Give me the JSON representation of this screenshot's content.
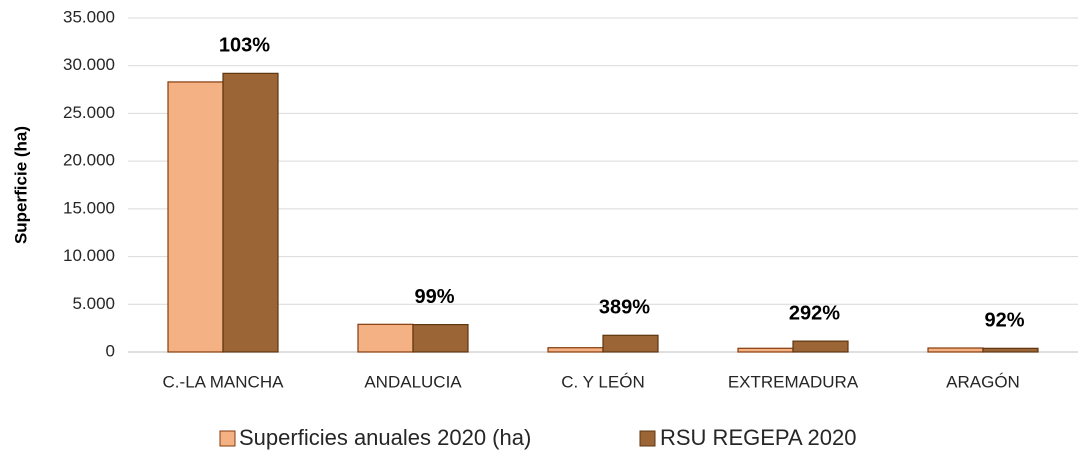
{
  "chart_data": {
    "type": "bar",
    "y_axis_label": "Superficie (ha)",
    "categories": [
      "C.-LA MANCHA",
      "ANDALUCIA",
      "C. Y LEÓN",
      "EXTREMADURA",
      "ARAGÓN"
    ],
    "series": [
      {
        "name": "Superficies anuales 2020 (ha)",
        "color": "#f4b183",
        "values": [
          28300,
          2900,
          450,
          390,
          420
        ]
      },
      {
        "name": "RSU REGEPA 2020",
        "color": "#9c6536",
        "values": [
          29200,
          2870,
          1750,
          1140,
          385
        ]
      }
    ],
    "annotations": [
      "103%",
      "99%",
      "389%",
      "292%",
      "92%"
    ],
    "ylim": [
      0,
      35000
    ],
    "yticks": [
      0,
      {
        "value": 5000,
        "label": "5.000"
      },
      {
        "value": 10000,
        "label": "10.000"
      },
      {
        "value": 15000,
        "label": "15.000"
      },
      {
        "value": 20000,
        "label": "20.000"
      },
      {
        "value": 25000,
        "label": "25.000"
      },
      {
        "value": 30000,
        "label": "30.000"
      },
      {
        "value": 35000,
        "label": "35.000"
      }
    ],
    "grid": true,
    "legend": "bottom"
  }
}
